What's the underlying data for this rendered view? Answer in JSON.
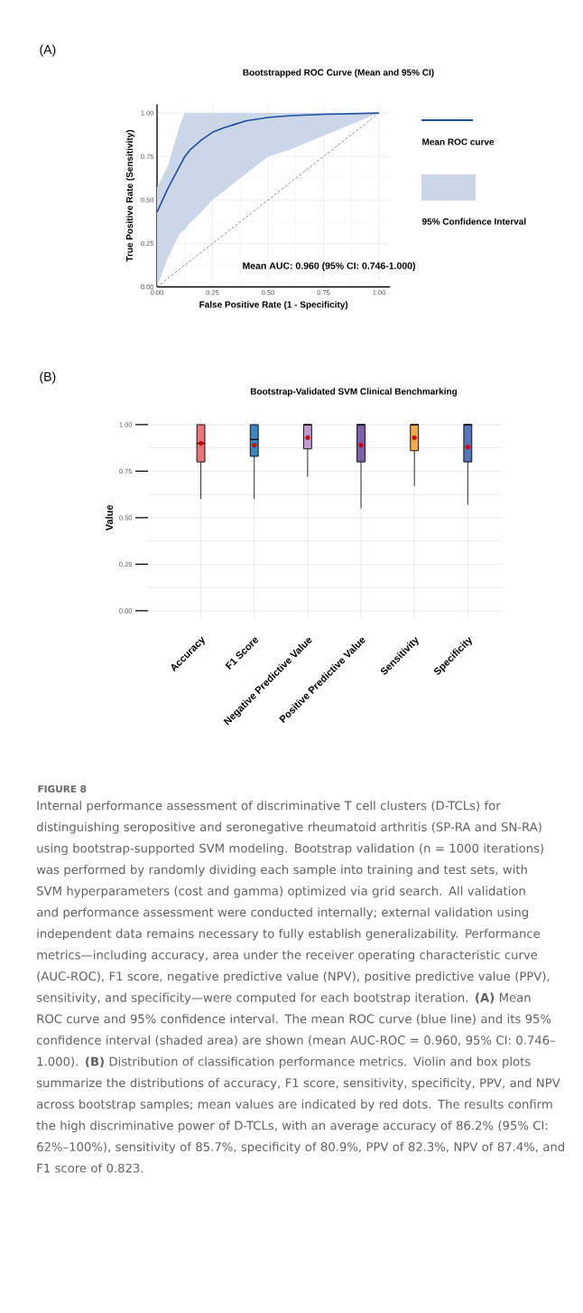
{
  "chart_data": [
    {
      "type": "line",
      "title": "Bootstrapped ROC Curve (Mean and 95% CI)",
      "xlabel": "False Positive Rate (1 - Specificity)",
      "ylabel": "True Positive Rate (Sensitivity)",
      "annotations": [
        "(A)",
        "Mean AUC: 0.960 (95% CI: 0.746-1.000)",
        "95% Confidence Interval"
      ],
      "series": [
        {
          "name": "Mean ROC curve",
          "type": "line",
          "color": "#1f4e9e",
          "x": [
            0,
            0.05,
            0.1,
            0.125,
            0.15,
            0.2,
            0.25,
            0.3,
            0.35,
            0.4,
            0.5,
            0.6,
            0.75,
            1
          ],
          "values": [
            0.43,
            0.57,
            0.69,
            0.75,
            0.79,
            0.845,
            0.89,
            0.915,
            0.935,
            0.955,
            0.975,
            0.985,
            0.993,
            1
          ],
          "lower": [
            0,
            0.17,
            0.3,
            0.33,
            0.37,
            0.43,
            0.5,
            0.55,
            0.6,
            0.65,
            0.75,
            0.79,
            0.87,
            1
          ],
          "upper": [
            0.57,
            0.7,
            0.92,
            1,
            1,
            1,
            1,
            1,
            1,
            1,
            1,
            1,
            1,
            1
          ]
        },
        {
          "type": "line",
          "color": "#808080",
          "line_style": "dashed",
          "x": [
            0,
            1
          ],
          "values": [
            0,
            1
          ]
        }
      ],
      "xlim": [
        0,
        1.05
      ],
      "ylim": [
        0,
        1.05
      ],
      "xticks": [
        {
          "value": 0,
          "label": "0.00"
        },
        {
          "value": 0.25,
          "label": "0.25"
        },
        {
          "value": 0.5,
          "label": "0.50"
        },
        {
          "value": 0.75,
          "label": "0.75"
        },
        {
          "value": 1,
          "label": "1.00"
        }
      ],
      "yticks": [
        {
          "value": 0,
          "label": "0.00"
        },
        {
          "value": 0.25,
          "label": "0.25"
        },
        {
          "value": 0.5,
          "label": "0.50"
        },
        {
          "value": 0.75,
          "label": "0.75"
        },
        {
          "value": 1,
          "label": "1.00"
        }
      ],
      "grid": true,
      "legend": "right"
    },
    {
      "type": "box",
      "title": "Bootstrap-Validated SVM Clinical Benchmarking",
      "ylabel": "Value",
      "annotations": [
        "(B)",
        "FIGURE 8",
        "Internal performance assessment of discriminative T cell clusters (D-TCLs) for distinguishing seropositive and seronegative rheumatoid arthritis (SP-RA and SN-RA) using bootstrap-supported SVM modeling. Bootstrap validation (n = 1000 iterations) was performed by randomly dividing each sample into training and test sets, with SVM hyperparameters (cost and gamma) optimized via grid search. All validation and performance assessment were conducted internally; external validation using independent data remains necessary to fully establish generalizability. Performance metrics—including accuracy, area under the receiver operating characteristic curve (AUC-ROC), F1 score, negative predictive value (NPV), positive predictive value (PPV), sensitivity, and specificity—were computed for each bootstrap iteration. **(A)** Mean ROC curve and 95% confidence interval. The mean ROC curve (blue line) and its 95% confidence interval (shaded area) are shown (mean AUC-ROC = 0.960, 95% CI: 0.746–1.000). **(B)** Distribution of classification performance metrics. Violin and box plots summarize the distributions of accuracy, F1 score, sensitivity, specificity, PPV, and NPV across bootstrap samples; mean values are indicated by red dots. The results confirm the high discriminative power of D-TCLs, with an average accuracy of 86.2% (95% CI: 62%–100%), sensitivity of 85.7%, specificity of 80.9%, PPV of 82.3%, NPV of 87.4%, and F1 score of 0.823."
      ],
      "categories": [
        "Accuracy",
        "F1 Score",
        "Negative Predictive Value",
        "Positive Predictive Value",
        "Sensitivity",
        "Specificity"
      ],
      "colors": [
        "#e8767a",
        "#3a86c0",
        "#c39bd3",
        "#7d5fa8",
        "#f0ad4e",
        "#5b76b8"
      ],
      "boxes": [
        {
          "low": 0.6,
          "q1": 0.8,
          "median": 0.9,
          "q3": 1.0,
          "high": 1.0,
          "mean": 0.9
        },
        {
          "low": 0.6,
          "q1": 0.83,
          "median": 0.92,
          "q3": 1.0,
          "high": 1.0,
          "mean": 0.89
        },
        {
          "low": 0.72,
          "q1": 0.87,
          "median": 1.0,
          "q3": 1.0,
          "high": 1.0,
          "mean": 0.93
        },
        {
          "low": 0.55,
          "q1": 0.8,
          "median": 1.0,
          "q3": 1.0,
          "high": 1.0,
          "mean": 0.89
        },
        {
          "low": 0.67,
          "q1": 0.86,
          "median": 1.0,
          "q3": 1.0,
          "high": 1.0,
          "mean": 0.93
        },
        {
          "low": 0.57,
          "q1": 0.8,
          "median": 1.0,
          "q3": 1.0,
          "high": 1.0,
          "mean": 0.88
        }
      ],
      "ylim": [
        -0.04,
        1.04
      ],
      "yticks": [
        {
          "value": 0,
          "label": "0.00"
        },
        {
          "value": 0.25,
          "label": "0.25"
        },
        {
          "value": 0.5,
          "label": "0.50"
        },
        {
          "value": 0.75,
          "label": "0.75"
        },
        {
          "value": 1,
          "label": "1.00"
        }
      ],
      "grid": true
    }
  ]
}
